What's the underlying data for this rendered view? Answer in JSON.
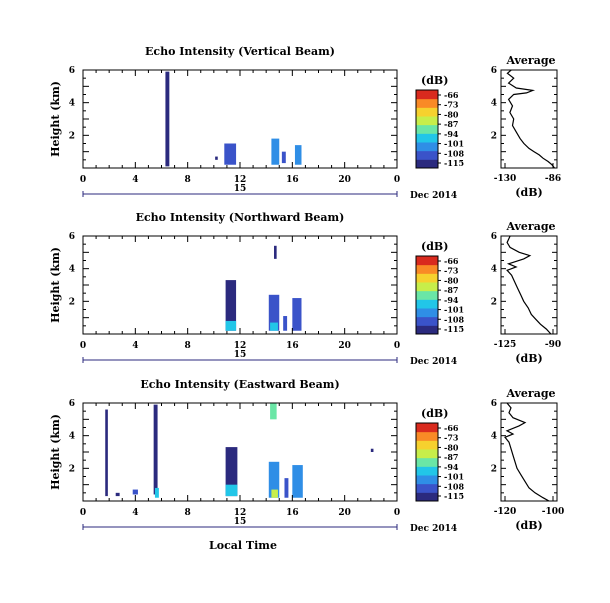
{
  "figure": {
    "x_axis_label": "Local Time",
    "date_label": "Dec 2014",
    "day_label": "15",
    "avg_title": "Average",
    "avg_xlabel": "(dB)",
    "cbar_unit": "(dB)",
    "cbar_ticks": [
      "-66",
      "-73",
      "-80",
      "-87",
      "-94",
      "-101",
      "-108",
      "-115"
    ],
    "colormap": [
      "#2b2a7e",
      "#3a53c9",
      "#2f8ee6",
      "#22c6e8",
      "#6ae6a6",
      "#c7ee4a",
      "#f6d12e",
      "#f98a26",
      "#d92a1e"
    ]
  },
  "chart_data": [
    {
      "type": "heatmap",
      "title": "Echo Intensity (Vertical Beam)",
      "ylabel": "Height (km)",
      "xlim": [
        0,
        24
      ],
      "ylim": [
        0,
        6
      ],
      "x_ticks": [
        "0",
        "4",
        "8",
        "12",
        "16",
        "20",
        "0"
      ],
      "y_ticks": [
        "2",
        "4",
        "6"
      ],
      "clim": [
        -115,
        -66
      ],
      "cells": [
        {
          "x": [
            6.3,
            6.6
          ],
          "y": [
            0.1,
            5.9
          ],
          "db": -113
        },
        {
          "x": [
            10.1,
            10.3
          ],
          "y": [
            0.5,
            0.7
          ],
          "db": -110
        },
        {
          "x": [
            10.8,
            11.7
          ],
          "y": [
            0.2,
            1.5
          ],
          "db": -107
        },
        {
          "x": [
            14.4,
            15.0
          ],
          "y": [
            0.2,
            1.8
          ],
          "db": -104
        },
        {
          "x": [
            15.2,
            15.5
          ],
          "y": [
            0.3,
            1.0
          ],
          "db": -105
        },
        {
          "x": [
            16.2,
            16.7
          ],
          "y": [
            0.2,
            1.4
          ],
          "db": -103
        }
      ],
      "average": {
        "title": "Average",
        "xlabel": "(dB)",
        "xlim": [
          -130,
          -86
        ],
        "x_ticks": [
          "-130",
          "-86"
        ],
        "y_ticks": [
          "2",
          "4",
          "6"
        ],
        "ylim": [
          0,
          6
        ],
        "profile": [
          [
            -88,
            0.0
          ],
          [
            -90,
            0.2
          ],
          [
            -93,
            0.4
          ],
          [
            -97,
            0.6
          ],
          [
            -100,
            0.8
          ],
          [
            -104,
            1.0
          ],
          [
            -108,
            1.2
          ],
          [
            -112,
            1.5
          ],
          [
            -115,
            1.8
          ],
          [
            -118,
            2.2
          ],
          [
            -121,
            2.6
          ],
          [
            -120,
            3.0
          ],
          [
            -123,
            3.4
          ],
          [
            -121,
            3.8
          ],
          [
            -124,
            4.2
          ],
          [
            -120,
            4.5
          ],
          [
            -110,
            4.6
          ],
          [
            -105,
            4.75
          ],
          [
            -118,
            4.9
          ],
          [
            -124,
            5.2
          ],
          [
            -120,
            5.5
          ],
          [
            -125,
            5.8
          ],
          [
            -122,
            6.0
          ]
        ]
      }
    },
    {
      "type": "heatmap",
      "title": "Echo Intensity (Northward Beam)",
      "ylabel": "Height (km)",
      "xlim": [
        0,
        24
      ],
      "ylim": [
        0,
        6
      ],
      "x_ticks": [
        "0",
        "4",
        "8",
        "12",
        "16",
        "20",
        "0"
      ],
      "y_ticks": [
        "2",
        "4",
        "6"
      ],
      "clim": [
        -115,
        -66
      ],
      "cells": [
        {
          "x": [
            10.9,
            11.7
          ],
          "y": [
            0.2,
            3.3
          ],
          "db": -112
        },
        {
          "x": [
            10.9,
            11.7
          ],
          "y": [
            0.2,
            0.8
          ],
          "db": -96
        },
        {
          "x": [
            14.6,
            14.8
          ],
          "y": [
            4.6,
            5.4
          ],
          "db": -112
        },
        {
          "x": [
            14.2,
            15.0
          ],
          "y": [
            0.2,
            2.4
          ],
          "db": -108
        },
        {
          "x": [
            14.3,
            14.9
          ],
          "y": [
            0.2,
            0.7
          ],
          "db": -94
        },
        {
          "x": [
            15.3,
            15.6
          ],
          "y": [
            0.2,
            1.1
          ],
          "db": -106
        },
        {
          "x": [
            16.0,
            16.7
          ],
          "y": [
            0.2,
            2.2
          ],
          "db": -105
        }
      ],
      "average": {
        "title": "Average",
        "xlabel": "(dB)",
        "xlim": [
          -125,
          -88
        ],
        "x_ticks": [
          "-125",
          "-90"
        ],
        "y_ticks": [
          "2",
          "4",
          "6"
        ],
        "ylim": [
          0,
          6
        ],
        "profile": [
          [
            -92,
            0.0
          ],
          [
            -95,
            0.3
          ],
          [
            -99,
            0.6
          ],
          [
            -102,
            0.9
          ],
          [
            -105,
            1.2
          ],
          [
            -107,
            1.6
          ],
          [
            -110,
            2.0
          ],
          [
            -112,
            2.4
          ],
          [
            -114,
            2.8
          ],
          [
            -116,
            3.2
          ],
          [
            -118,
            3.6
          ],
          [
            -121,
            3.9
          ],
          [
            -115,
            4.1
          ],
          [
            -120,
            4.3
          ],
          [
            -110,
            4.6
          ],
          [
            -106,
            4.8
          ],
          [
            -113,
            5.0
          ],
          [
            -119,
            5.3
          ],
          [
            -121,
            5.6
          ],
          [
            -119,
            6.0
          ]
        ]
      }
    },
    {
      "type": "heatmap",
      "title": "Echo Intensity (Eastward Beam)",
      "ylabel": "Height (km)",
      "xlim": [
        0,
        24
      ],
      "ylim": [
        0,
        6
      ],
      "x_ticks": [
        "0",
        "4",
        "8",
        "12",
        "16",
        "20",
        "0"
      ],
      "y_ticks": [
        "2",
        "4",
        "6"
      ],
      "clim": [
        -115,
        -66
      ],
      "cells": [
        {
          "x": [
            1.7,
            1.9
          ],
          "y": [
            0.3,
            5.6
          ],
          "db": -115
        },
        {
          "x": [
            5.4,
            5.7
          ],
          "y": [
            0.4,
            5.9
          ],
          "db": -113
        },
        {
          "x": [
            2.5,
            2.8
          ],
          "y": [
            0.3,
            0.5
          ],
          "db": -110
        },
        {
          "x": [
            3.8,
            4.2
          ],
          "y": [
            0.4,
            0.7
          ],
          "db": -108
        },
        {
          "x": [
            5.5,
            5.8
          ],
          "y": [
            0.2,
            0.8
          ],
          "db": -98
        },
        {
          "x": [
            10.9,
            11.8
          ],
          "y": [
            0.3,
            3.3
          ],
          "db": -112
        },
        {
          "x": [
            10.9,
            11.8
          ],
          "y": [
            0.3,
            1.0
          ],
          "db": -98
        },
        {
          "x": [
            14.3,
            14.8
          ],
          "y": [
            5.0,
            6.0
          ],
          "db": -90
        },
        {
          "x": [
            14.2,
            15.0
          ],
          "y": [
            0.2,
            2.4
          ],
          "db": -104
        },
        {
          "x": [
            14.4,
            14.9
          ],
          "y": [
            0.2,
            0.7
          ],
          "db": -84
        },
        {
          "x": [
            15.4,
            15.7
          ],
          "y": [
            0.2,
            1.4
          ],
          "db": -106
        },
        {
          "x": [
            16.0,
            16.8
          ],
          "y": [
            0.2,
            2.2
          ],
          "db": -102
        },
        {
          "x": [
            22.0,
            22.2
          ],
          "y": [
            3.0,
            3.2
          ],
          "db": -112
        }
      ],
      "average": {
        "title": "Average",
        "xlabel": "(dB)",
        "xlim": [
          -122,
          -94
        ],
        "x_ticks": [
          "-120",
          "-100"
        ],
        "y_ticks": [
          "2",
          "4",
          "6"
        ],
        "ylim": [
          0,
          6
        ],
        "profile": [
          [
            -98,
            0.0
          ],
          [
            -101,
            0.2
          ],
          [
            -105,
            0.5
          ],
          [
            -108,
            0.8
          ],
          [
            -110,
            1.2
          ],
          [
            -112,
            1.6
          ],
          [
            -114,
            2.0
          ],
          [
            -115,
            2.4
          ],
          [
            -116,
            2.8
          ],
          [
            -117,
            3.2
          ],
          [
            -118,
            3.6
          ],
          [
            -120,
            3.9
          ],
          [
            -116,
            4.1
          ],
          [
            -119,
            4.3
          ],
          [
            -113,
            4.6
          ],
          [
            -110,
            4.8
          ],
          [
            -116,
            5.1
          ],
          [
            -118,
            5.4
          ],
          [
            -117,
            5.7
          ],
          [
            -119,
            6.0
          ]
        ]
      }
    }
  ]
}
